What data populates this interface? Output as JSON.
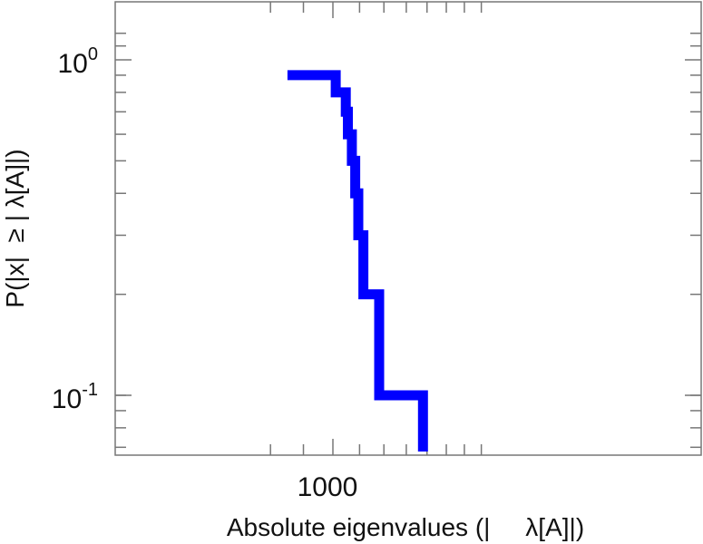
{
  "chart_data": {
    "type": "line",
    "subtype": "step",
    "title": "",
    "xlabel": "Absolute eigenvalues (|     λ[A]|)",
    "ylabel": "P(|x|  ≥ | λ[A]|)",
    "xscale": "log",
    "yscale": "log",
    "xlim": [
      740,
      1700
    ],
    "ylim": [
      0.068,
      1.6
    ],
    "x_tick_labels": [
      {
        "value": 1000,
        "label": "1000"
      }
    ],
    "y_tick_labels": [
      {
        "value": 1,
        "base": "10",
        "exp": "0"
      },
      {
        "value": 0.1,
        "base": "10",
        "exp": "-1"
      }
    ],
    "grid": false,
    "series": [
      {
        "color": "#0000ff",
        "points": [
          [
            850,
            0.9
          ],
          [
            1010,
            0.9
          ],
          [
            1010,
            0.8
          ],
          [
            1047,
            0.8
          ],
          [
            1047,
            0.7
          ],
          [
            1055,
            0.7
          ],
          [
            1055,
            0.6
          ],
          [
            1070,
            0.6
          ],
          [
            1070,
            0.5
          ],
          [
            1083,
            0.5
          ],
          [
            1083,
            0.4
          ],
          [
            1095,
            0.4
          ],
          [
            1095,
            0.3
          ],
          [
            1115,
            0.3
          ],
          [
            1115,
            0.2
          ],
          [
            1180,
            0.2
          ],
          [
            1180,
            0.1
          ],
          [
            1380,
            0.1
          ],
          [
            1380,
            0.068
          ]
        ]
      }
    ]
  }
}
